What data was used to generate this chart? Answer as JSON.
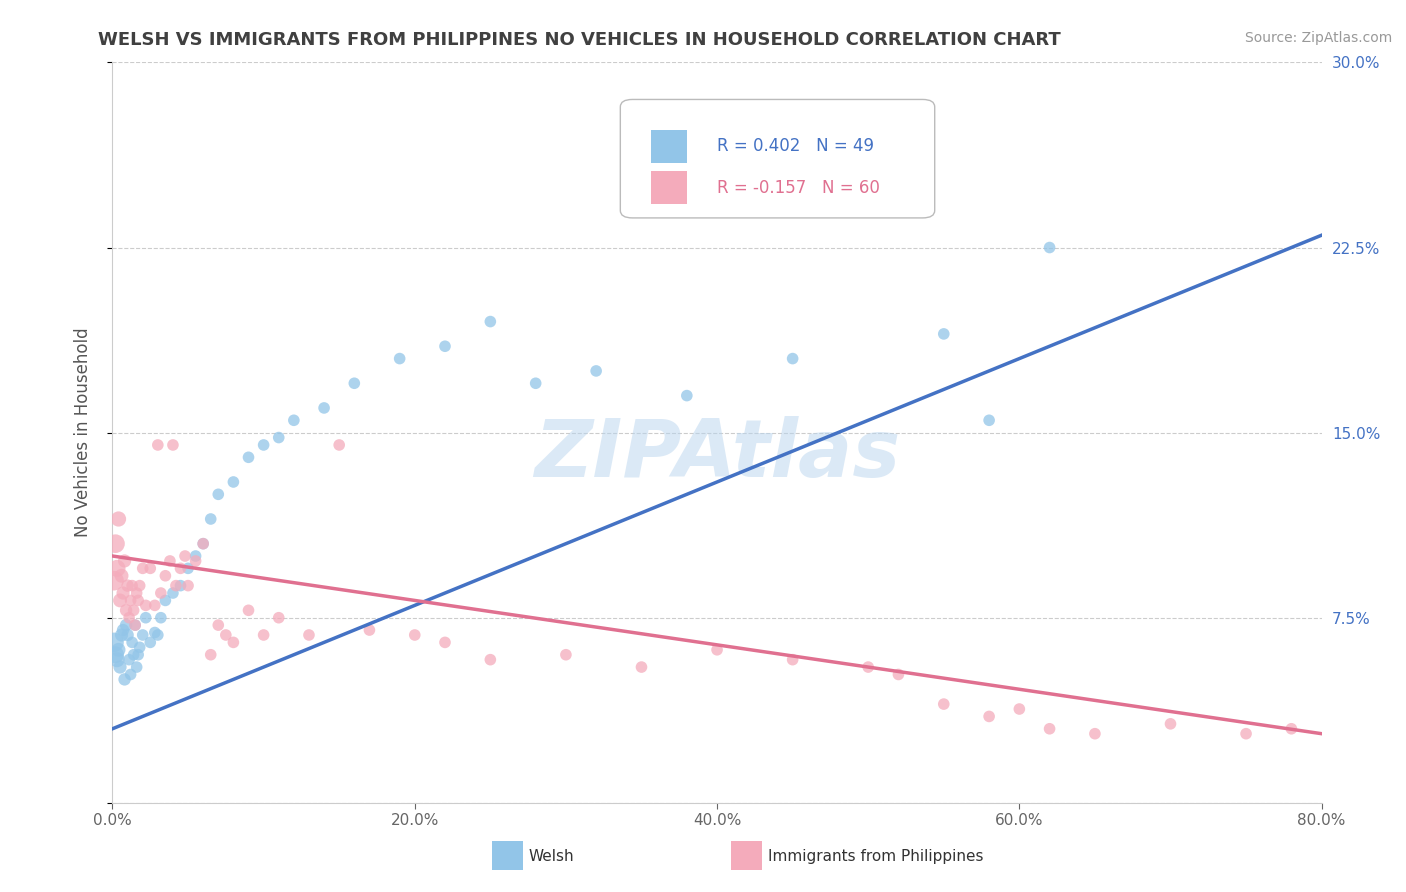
{
  "title": "WELSH VS IMMIGRANTS FROM PHILIPPINES NO VEHICLES IN HOUSEHOLD CORRELATION CHART",
  "source": "Source: ZipAtlas.com",
  "ylabel": "No Vehicles in Household",
  "watermark": "ZIPAtlas",
  "xlim": [
    0.0,
    0.8
  ],
  "ylim": [
    0.0,
    0.3
  ],
  "xticks": [
    0.0,
    0.2,
    0.4,
    0.6,
    0.8
  ],
  "yticks": [
    0.0,
    0.075,
    0.15,
    0.225,
    0.3
  ],
  "xtick_labels": [
    "0.0%",
    "20.0%",
    "40.0%",
    "60.0%",
    "80.0%"
  ],
  "ytick_labels": [
    "",
    "7.5%",
    "15.0%",
    "22.5%",
    "30.0%"
  ],
  "series1_name": "Welsh",
  "series1_color": "#92C5E8",
  "series1_line_color": "#4472C4",
  "series1_R": 0.402,
  "series1_N": 49,
  "series2_name": "Immigrants from Philippines",
  "series2_color": "#F4ABBB",
  "series2_line_color": "#E07090",
  "series2_R": -0.157,
  "series2_N": 60,
  "background_color": "#FFFFFF",
  "grid_color": "#CCCCCC",
  "title_color": "#404040",
  "welsh_trend_x0": 0.0,
  "welsh_trend_y0": 0.03,
  "welsh_trend_x1": 0.8,
  "welsh_trend_y1": 0.23,
  "phil_trend_x0": 0.0,
  "phil_trend_y0": 0.1,
  "phil_trend_x1": 0.8,
  "phil_trend_y1": 0.028,
  "welsh_x": [
    0.001,
    0.002,
    0.003,
    0.004,
    0.005,
    0.006,
    0.007,
    0.008,
    0.009,
    0.01,
    0.011,
    0.012,
    0.013,
    0.014,
    0.015,
    0.016,
    0.017,
    0.018,
    0.02,
    0.022,
    0.025,
    0.028,
    0.03,
    0.032,
    0.035,
    0.04,
    0.045,
    0.05,
    0.055,
    0.06,
    0.065,
    0.07,
    0.08,
    0.09,
    0.1,
    0.11,
    0.12,
    0.14,
    0.16,
    0.19,
    0.22,
    0.25,
    0.28,
    0.32,
    0.38,
    0.45,
    0.55,
    0.58,
    0.62
  ],
  "welsh_y": [
    0.065,
    0.06,
    0.058,
    0.062,
    0.055,
    0.068,
    0.07,
    0.05,
    0.072,
    0.068,
    0.058,
    0.052,
    0.065,
    0.06,
    0.072,
    0.055,
    0.06,
    0.063,
    0.068,
    0.075,
    0.065,
    0.069,
    0.068,
    0.075,
    0.082,
    0.085,
    0.088,
    0.095,
    0.1,
    0.105,
    0.115,
    0.125,
    0.13,
    0.14,
    0.145,
    0.148,
    0.155,
    0.16,
    0.17,
    0.18,
    0.185,
    0.195,
    0.17,
    0.175,
    0.165,
    0.18,
    0.19,
    0.155,
    0.225
  ],
  "welsh_sizes": [
    200,
    150,
    120,
    100,
    90,
    90,
    80,
    80,
    80,
    80,
    70,
    70,
    70,
    70,
    70,
    70,
    70,
    70,
    70,
    70,
    70,
    70,
    70,
    70,
    70,
    70,
    70,
    70,
    70,
    70,
    70,
    70,
    70,
    70,
    70,
    70,
    70,
    70,
    70,
    70,
    70,
    70,
    70,
    70,
    70,
    70,
    70,
    70,
    70
  ],
  "phil_x": [
    0.001,
    0.002,
    0.003,
    0.004,
    0.005,
    0.006,
    0.007,
    0.008,
    0.009,
    0.01,
    0.011,
    0.012,
    0.013,
    0.014,
    0.015,
    0.016,
    0.017,
    0.018,
    0.02,
    0.022,
    0.025,
    0.028,
    0.03,
    0.032,
    0.035,
    0.038,
    0.04,
    0.042,
    0.045,
    0.048,
    0.05,
    0.055,
    0.06,
    0.065,
    0.07,
    0.075,
    0.08,
    0.09,
    0.1,
    0.11,
    0.13,
    0.15,
    0.17,
    0.2,
    0.22,
    0.25,
    0.3,
    0.35,
    0.4,
    0.45,
    0.5,
    0.52,
    0.55,
    0.58,
    0.6,
    0.62,
    0.65,
    0.7,
    0.75,
    0.78
  ],
  "phil_y": [
    0.09,
    0.105,
    0.095,
    0.115,
    0.082,
    0.092,
    0.085,
    0.098,
    0.078,
    0.088,
    0.075,
    0.082,
    0.088,
    0.078,
    0.072,
    0.085,
    0.082,
    0.088,
    0.095,
    0.08,
    0.095,
    0.08,
    0.145,
    0.085,
    0.092,
    0.098,
    0.145,
    0.088,
    0.095,
    0.1,
    0.088,
    0.098,
    0.105,
    0.06,
    0.072,
    0.068,
    0.065,
    0.078,
    0.068,
    0.075,
    0.068,
    0.145,
    0.07,
    0.068,
    0.065,
    0.058,
    0.06,
    0.055,
    0.062,
    0.058,
    0.055,
    0.052,
    0.04,
    0.035,
    0.038,
    0.03,
    0.028,
    0.032,
    0.028,
    0.03
  ],
  "phil_sizes": [
    200,
    180,
    150,
    120,
    100,
    100,
    90,
    90,
    80,
    80,
    70,
    70,
    70,
    70,
    70,
    70,
    70,
    70,
    70,
    70,
    70,
    70,
    70,
    70,
    70,
    70,
    70,
    70,
    70,
    70,
    70,
    70,
    70,
    70,
    70,
    70,
    70,
    70,
    70,
    70,
    70,
    70,
    70,
    70,
    70,
    70,
    70,
    70,
    70,
    70,
    70,
    70,
    70,
    70,
    70,
    70,
    70,
    70,
    70,
    70
  ]
}
